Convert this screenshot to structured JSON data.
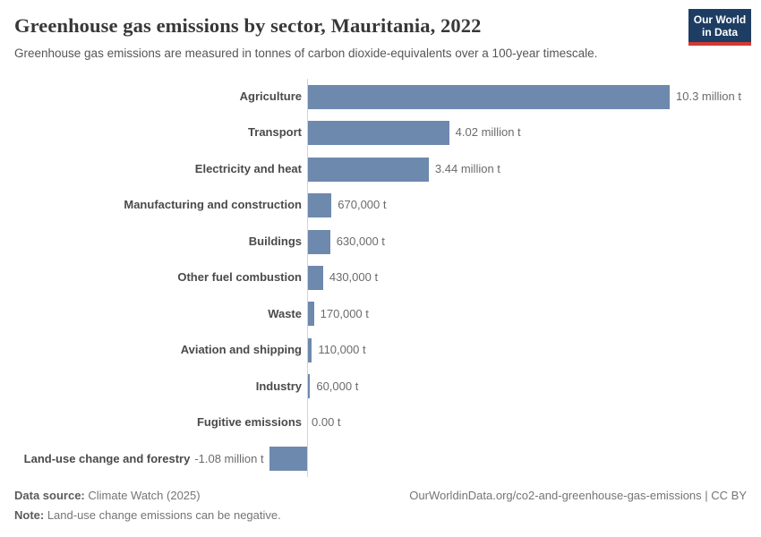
{
  "header": {
    "title": "Greenhouse gas emissions by sector, Mauritania, 2022",
    "subtitle": "Greenhouse gas emissions are measured in tonnes of carbon dioxide-equivalents over a 100-year timescale."
  },
  "logo": {
    "line1": "Our World",
    "line2": "in Data",
    "bg_color": "#1d3d63",
    "accent_color": "#d13a32"
  },
  "chart_data": {
    "type": "bar",
    "orientation": "horizontal",
    "title": "Greenhouse gas emissions by sector, Mauritania, 2022",
    "subtitle": "Greenhouse gas emissions are measured in tonnes of carbon dioxide-equivalents over a 100-year timescale.",
    "unit": "t",
    "bar_color": "#6e89ae",
    "axis_color": "#d4d4d4",
    "xlim_million_t": [
      -1.08,
      10.3
    ],
    "grid": false,
    "legend": false,
    "categories": [
      "Agriculture",
      "Transport",
      "Electricity and heat",
      "Manufacturing and construction",
      "Buildings",
      "Other fuel combustion",
      "Waste",
      "Aviation and shipping",
      "Industry",
      "Fugitive emissions",
      "Land-use change and forestry"
    ],
    "values_million_t": [
      10.3,
      4.02,
      3.44,
      0.67,
      0.63,
      0.43,
      0.17,
      0.11,
      0.06,
      0,
      -1.08
    ],
    "value_labels": [
      "10.3 million t",
      "4.02 million t",
      "3.44 million t",
      "670,000 t",
      "630,000 t",
      "430,000 t",
      "170,000 t",
      "110,000 t",
      "60,000 t",
      "0.00 t",
      "-1.08 million t"
    ]
  },
  "footer": {
    "data_source_label": "Data source:",
    "data_source_value": " Climate Watch (2025)",
    "note_label": "Note:",
    "note_value": " Land-use change emissions can be negative.",
    "citation": "OurWorldinData.org/co2-and-greenhouse-gas-emissions | CC BY"
  }
}
